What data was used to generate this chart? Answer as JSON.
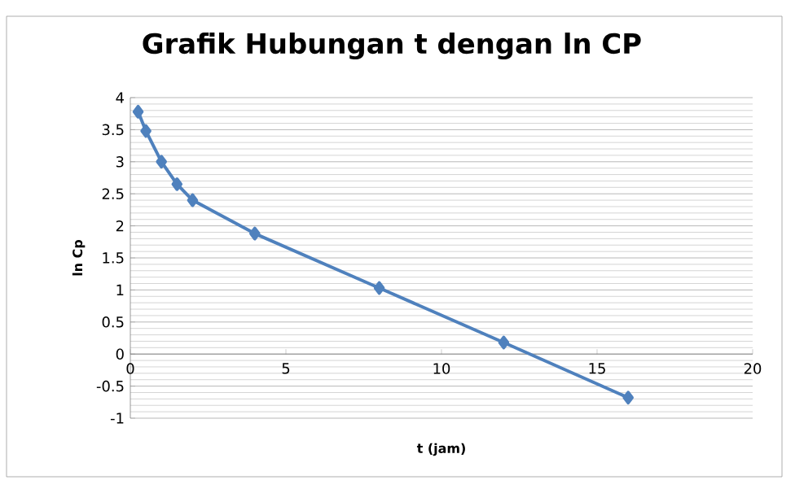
{
  "chart_data": {
    "type": "line",
    "title": "Grafik Hubungan t dengan ln CP",
    "xlabel": "t (jam)",
    "ylabel": "ln Cp",
    "x": [
      0.25,
      0.5,
      1,
      1.5,
      2,
      4,
      8,
      12,
      16
    ],
    "series": [
      {
        "color": "#4f81bd",
        "values": [
          3.78,
          3.48,
          3.0,
          2.65,
          2.4,
          1.88,
          1.03,
          0.18,
          -0.68
        ]
      }
    ],
    "xlim": [
      0,
      20
    ],
    "xticks": [
      0,
      5,
      10,
      15,
      20
    ],
    "ylim": [
      -1,
      4
    ],
    "yticks": [
      -1,
      -0.5,
      0,
      0.5,
      1,
      1.5,
      2,
      2.5,
      3,
      3.5,
      4
    ],
    "grid": "y",
    "marker": "diamond",
    "line_style": "solid"
  }
}
